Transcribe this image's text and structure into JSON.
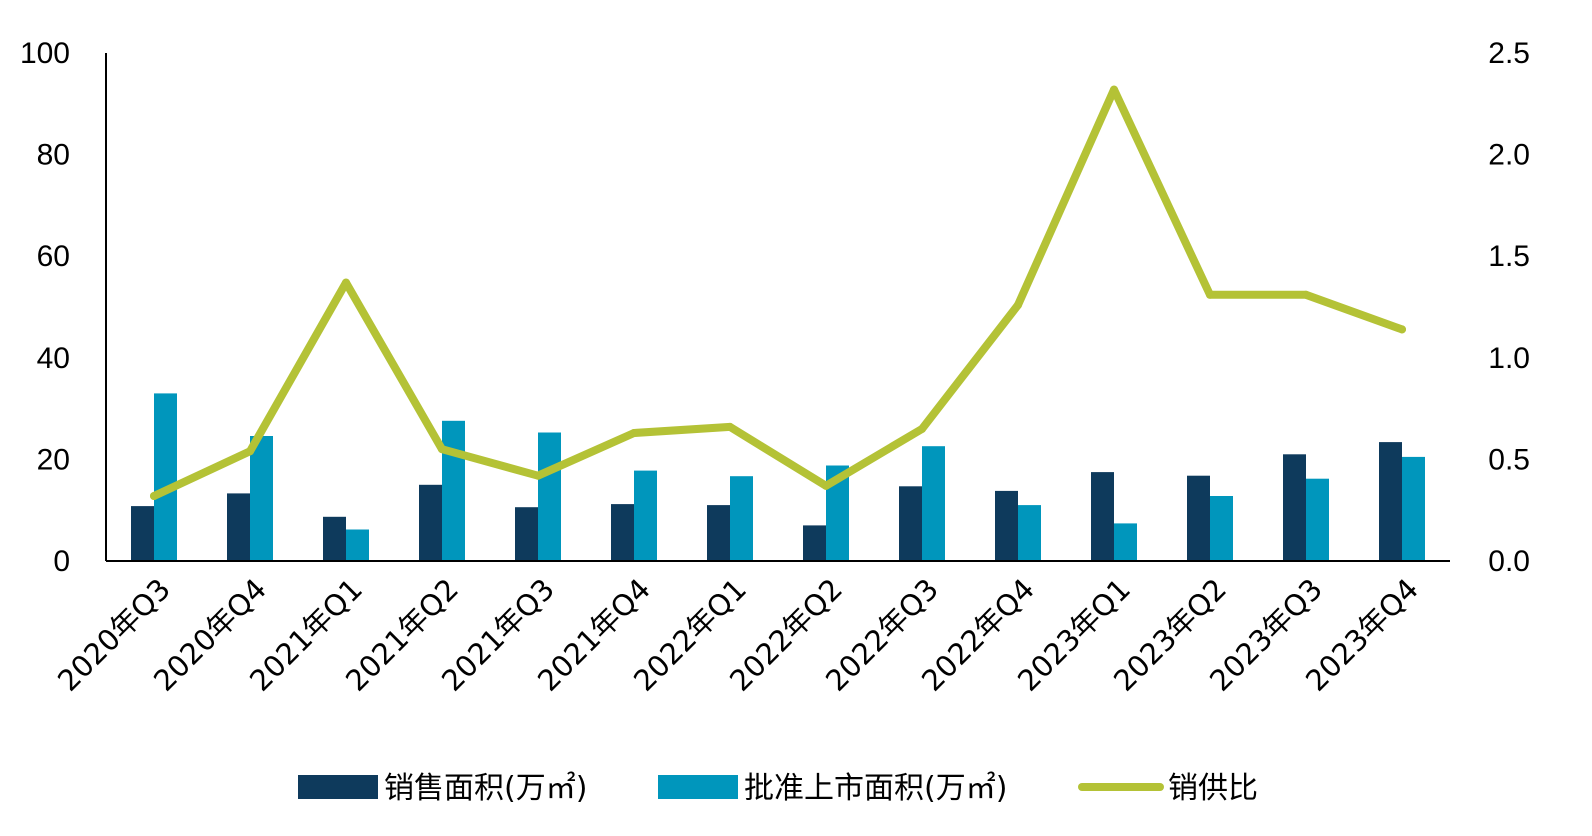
{
  "chart_data": {
    "type": "bar",
    "categories": [
      "2020年Q3",
      "2020年Q4",
      "2021年Q1",
      "2021年Q2",
      "2021年Q3",
      "2021年Q4",
      "2022年Q1",
      "2022年Q2",
      "2022年Q3",
      "2022年Q4",
      "2023年Q1",
      "2023年Q2",
      "2023年Q3",
      "2023年Q4"
    ],
    "series": [
      {
        "name": "销售面积(万㎡)",
        "type": "bar",
        "axis": "left",
        "color": "#0e3a5c",
        "values": [
          10.8,
          13.3,
          8.7,
          15.0,
          10.6,
          11.2,
          11.0,
          7.0,
          14.7,
          13.8,
          17.5,
          16.8,
          21.0,
          23.4
        ]
      },
      {
        "name": "批准上市面积(万㎡)",
        "type": "bar",
        "axis": "left",
        "color": "#0096bc",
        "values": [
          33.0,
          24.6,
          6.2,
          27.6,
          25.3,
          17.8,
          16.7,
          18.8,
          22.6,
          11.0,
          7.4,
          12.8,
          16.2,
          20.5
        ]
      },
      {
        "name": "销供比",
        "type": "line",
        "axis": "right",
        "color": "#b4c236",
        "values": [
          0.32,
          0.54,
          1.37,
          0.55,
          0.42,
          0.63,
          0.66,
          0.37,
          0.65,
          1.26,
          2.32,
          1.31,
          1.31,
          1.14
        ]
      }
    ],
    "y_left": {
      "ylim": [
        0,
        100
      ],
      "ticks": [
        "0",
        "20",
        "40",
        "60",
        "80",
        "100"
      ]
    },
    "y_right": {
      "ylim": [
        0,
        2.5
      ],
      "ticks": [
        "0.0",
        "0.5",
        "1.0",
        "1.5",
        "2.0",
        "2.5"
      ]
    },
    "legend": "bottom",
    "grid": false,
    "title": "",
    "xlabel": "",
    "ylabel": ""
  }
}
